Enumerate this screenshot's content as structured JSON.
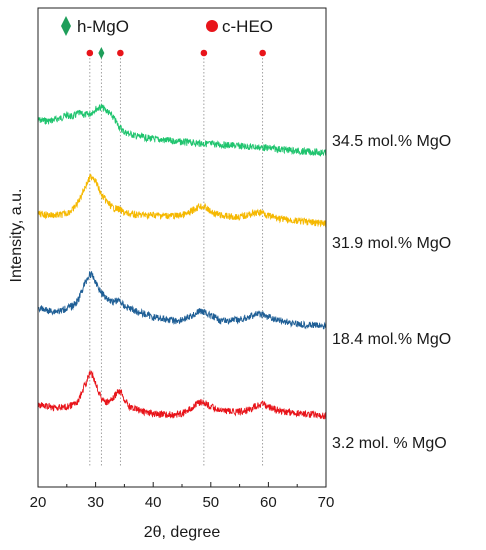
{
  "chart_data": {
    "type": "line",
    "xlabel": "2θ, degree",
    "ylabel": "Intensity, a.u.",
    "xlim": [
      20,
      70
    ],
    "xticks": [
      20,
      30,
      40,
      50,
      60,
      70
    ],
    "legend": {
      "placement": "top",
      "entries": [
        {
          "name": "h-MgO",
          "marker": "diamond",
          "color": "#1e9e5a"
        },
        {
          "name": "c-HEO",
          "marker": "circle",
          "color": "#e8141a"
        }
      ]
    },
    "reference_lines": [
      {
        "x": 29.0,
        "phase": "c-HEO"
      },
      {
        "x": 31.0,
        "phase": "h-MgO"
      },
      {
        "x": 34.3,
        "phase": "c-HEO"
      },
      {
        "x": 48.8,
        "phase": "c-HEO"
      },
      {
        "x": 59.0,
        "phase": "c-HEO"
      }
    ],
    "series": [
      {
        "name": "34.5 mol.% MgO",
        "color": "#1fc46e",
        "points": [
          [
            20,
            0
          ],
          [
            22,
            -1
          ],
          [
            24,
            2
          ],
          [
            25,
            5
          ],
          [
            26,
            3
          ],
          [
            27,
            7
          ],
          [
            28,
            5
          ],
          [
            29,
            6
          ],
          [
            30,
            11
          ],
          [
            31,
            13
          ],
          [
            32,
            9
          ],
          [
            33,
            3
          ],
          [
            34,
            -6
          ],
          [
            35,
            -12
          ],
          [
            37,
            -16
          ],
          [
            40,
            -19
          ],
          [
            45,
            -22
          ],
          [
            50,
            -24
          ],
          [
            55,
            -26
          ],
          [
            60,
            -28
          ],
          [
            65,
            -31
          ],
          [
            70,
            -33
          ]
        ]
      },
      {
        "name": "31.9 mol.% MgO",
        "color": "#f5b800",
        "points": [
          [
            20,
            0
          ],
          [
            22,
            -1
          ],
          [
            24,
            -1
          ],
          [
            25,
            1
          ],
          [
            26,
            4
          ],
          [
            27,
            12
          ],
          [
            28,
            25
          ],
          [
            29,
            36
          ],
          [
            29.5,
            38
          ],
          [
            30,
            33
          ],
          [
            31,
            19
          ],
          [
            32,
            12
          ],
          [
            33,
            6
          ],
          [
            34,
            5
          ],
          [
            35,
            1
          ],
          [
            37,
            -1
          ],
          [
            40,
            -1
          ],
          [
            44,
            -2
          ],
          [
            46,
            0
          ],
          [
            47,
            4
          ],
          [
            48,
            8
          ],
          [
            49,
            7
          ],
          [
            50,
            2
          ],
          [
            52,
            -2
          ],
          [
            55,
            -3
          ],
          [
            57,
            0
          ],
          [
            59,
            2
          ],
          [
            60,
            -2
          ],
          [
            63,
            -6
          ],
          [
            67,
            -8
          ],
          [
            70,
            -10
          ]
        ]
      },
      {
        "name": "18.4 mol.% MgO",
        "color": "#1f5f96",
        "points": [
          [
            20,
            0
          ],
          [
            22,
            -3
          ],
          [
            24,
            -3
          ],
          [
            25,
            0
          ],
          [
            26,
            2
          ],
          [
            27,
            8
          ],
          [
            28,
            23
          ],
          [
            29,
            34
          ],
          [
            29.5,
            32
          ],
          [
            30,
            26
          ],
          [
            31,
            15
          ],
          [
            32,
            10
          ],
          [
            33,
            6
          ],
          [
            34,
            8
          ],
          [
            35,
            2
          ],
          [
            37,
            -3
          ],
          [
            40,
            -9
          ],
          [
            44,
            -13
          ],
          [
            46,
            -10
          ],
          [
            47,
            -7
          ],
          [
            48,
            -3
          ],
          [
            49,
            -4
          ],
          [
            50,
            -8
          ],
          [
            52,
            -13
          ],
          [
            55,
            -12
          ],
          [
            57,
            -8
          ],
          [
            58,
            -6
          ],
          [
            59,
            -7
          ],
          [
            61,
            -11
          ],
          [
            64,
            -15
          ],
          [
            67,
            -17
          ],
          [
            70,
            -18
          ]
        ]
      },
      {
        "name": "3.2 mol. % MgO",
        "color": "#e8141a",
        "points": [
          [
            20,
            0
          ],
          [
            22,
            -2
          ],
          [
            24,
            -3
          ],
          [
            25,
            -2
          ],
          [
            26,
            0
          ],
          [
            27,
            4
          ],
          [
            28,
            18
          ],
          [
            29,
            31
          ],
          [
            29.5,
            30
          ],
          [
            30,
            22
          ],
          [
            31,
            7
          ],
          [
            32,
            2
          ],
          [
            33,
            6
          ],
          [
            34,
            14
          ],
          [
            34.6,
            12
          ],
          [
            35,
            5
          ],
          [
            36,
            -2
          ],
          [
            38,
            -6
          ],
          [
            40,
            -9
          ],
          [
            44,
            -10
          ],
          [
            46,
            -6
          ],
          [
            47,
            -1
          ],
          [
            48,
            3
          ],
          [
            49,
            2
          ],
          [
            50,
            -2
          ],
          [
            52,
            -6
          ],
          [
            55,
            -7
          ],
          [
            57,
            -4
          ],
          [
            58,
            0
          ],
          [
            59,
            1
          ],
          [
            60,
            -2
          ],
          [
            62,
            -6
          ],
          [
            65,
            -8
          ],
          [
            70,
            -11
          ]
        ]
      }
    ]
  }
}
